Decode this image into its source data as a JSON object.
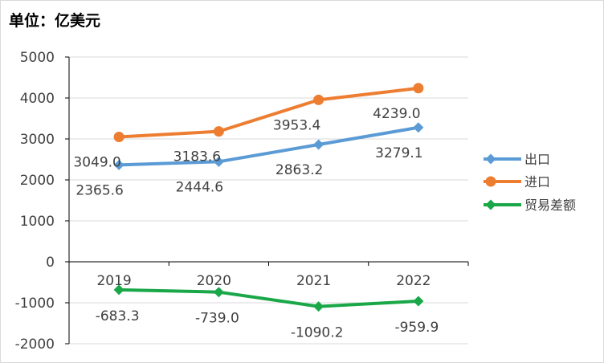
{
  "unit_title": "单位：亿美元",
  "colors": {
    "export": "#5B9BD5",
    "import": "#ED7D31",
    "balance": "#19A748"
  },
  "chart_data": {
    "type": "line",
    "title": "",
    "categories": [
      "2019",
      "2020",
      "2021",
      "2022"
    ],
    "ylim": [
      -2000,
      5000
    ],
    "yticks": [
      "5000",
      "4000",
      "3000",
      "2000",
      "1000",
      "0",
      "-1000",
      "-2000"
    ],
    "grid": true,
    "legend_position": "right",
    "series": [
      {
        "name": "出口",
        "values": [
          2365.6,
          2444.6,
          2863.2,
          3279.1
        ],
        "labels": [
          "2365.6",
          "2444.6",
          "2863.2",
          "3279.1"
        ],
        "marker": "diamond"
      },
      {
        "name": "进口",
        "values": [
          3049.0,
          3183.6,
          3953.4,
          4239.0
        ],
        "labels": [
          "3049.0",
          "3183.6",
          "3953.4",
          "4239.0"
        ],
        "marker": "circle"
      },
      {
        "name": "贸易差额",
        "values": [
          -683.3,
          -739.0,
          -1090.2,
          -959.9
        ],
        "labels": [
          "-683.3",
          "-739.0",
          "-1090.2",
          "-959.9"
        ],
        "marker": "diamond"
      }
    ]
  }
}
